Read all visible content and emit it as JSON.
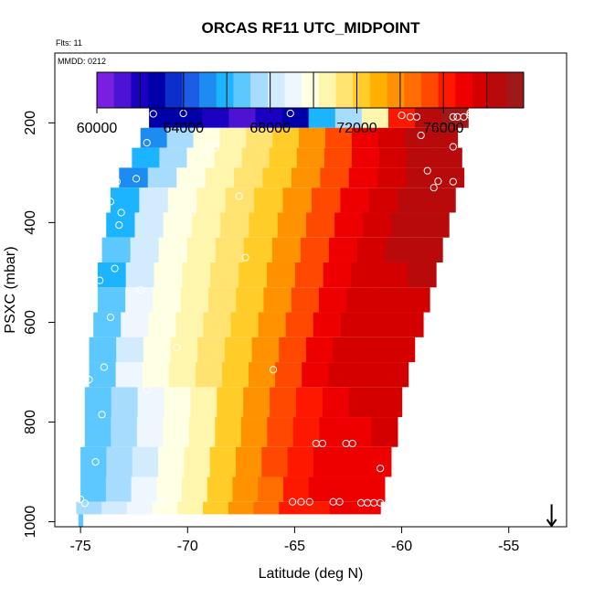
{
  "chart_data": {
    "type": "heatmap",
    "title": "ORCAS RF11 UTC_MIDPOINT",
    "annotations": {
      "flights": "Flts: 11",
      "date": "MMDD: 0212"
    },
    "xlabel": "Latitude (deg N)",
    "ylabel": "PSXC (mbar)",
    "xlim": [
      -76.2,
      -52.3
    ],
    "ylim": [
      1010,
      60
    ],
    "y_reversed": true,
    "x_ticks": [
      -75,
      -70,
      -65,
      -60,
      -55
    ],
    "x_tick_labels": [
      "-75",
      "-70",
      "-65",
      "-60",
      "-55"
    ],
    "y_ticks": [
      200,
      400,
      600,
      800,
      1000
    ],
    "y_tick_labels": [
      "200",
      "400",
      "600",
      "800",
      "1000"
    ],
    "colorbar": {
      "min": 60000,
      "max": 79700,
      "ticks": [
        60000,
        64000,
        68000,
        72000,
        76000
      ],
      "tick_labels": [
        "60000",
        "64000",
        "68000",
        "72000",
        "76000"
      ],
      "colors": [
        "#7A1FE0",
        "#4C14D2",
        "#1A00C0",
        "#0000A8",
        "#0C2ECC",
        "#1C5CE6",
        "#1C8CF2",
        "#1CB4FE",
        "#5CC8FE",
        "#A8DCFE",
        "#D2ECFE",
        "#EEF6FE",
        "#FFFFE4",
        "#FFF6AE",
        "#FFE270",
        "#FFCC28",
        "#FFB000",
        "#FF9200",
        "#FF6E00",
        "#FF4800",
        "#FF1800",
        "#EE0000",
        "#D40000",
        "#B80A0A",
        "#A01818"
      ],
      "block_boundaries": [
        62000,
        64000,
        66000,
        68000,
        70000,
        72000,
        74000,
        76000,
        78000
      ]
    },
    "series": [
      {
        "p_top": 158,
        "p_bot": 210,
        "x_left": -71.8,
        "x_right": -56.9,
        "values": [
          62600,
          62600,
          61800,
          61000,
          61800,
          63000,
          65600,
          67600,
          70400,
          76000,
          78200,
          79000
        ]
      },
      {
        "p_top": 210,
        "p_bot": 250,
        "x_left": -72.2,
        "x_right": -57.4,
        "values": [
          65400,
          67400,
          69600,
          70600,
          71400,
          72600,
          73800,
          75400,
          76800,
          77600,
          78200,
          78600
        ]
      },
      {
        "p_top": 250,
        "p_bot": 290,
        "x_left": -72.6,
        "x_right": -57.2,
        "values": [
          65600,
          67600,
          69600,
          70600,
          71400,
          72600,
          73800,
          75400,
          76800,
          77600,
          78200,
          78800
        ]
      },
      {
        "p_top": 290,
        "p_bot": 330,
        "x_left": -73.2,
        "x_right": -57.1,
        "values": [
          65400,
          67600,
          69600,
          70600,
          71400,
          72600,
          73800,
          75400,
          76800,
          77600,
          78200,
          78600
        ]
      },
      {
        "p_top": 330,
        "p_bot": 380,
        "x_left": -73.6,
        "x_right": -57.5,
        "values": [
          66000,
          68200,
          69600,
          70600,
          71400,
          72600,
          73800,
          75400,
          76800,
          77600,
          78200,
          78600
        ]
      },
      {
        "p_top": 380,
        "p_bot": 430,
        "x_left": -73.8,
        "x_right": -57.8,
        "values": [
          66200,
          68200,
          69600,
          70600,
          71400,
          72600,
          73800,
          75400,
          76800,
          77600,
          78200,
          78600
        ]
      },
      {
        "p_top": 430,
        "p_bot": 480,
        "x_left": -74.0,
        "x_right": -58.1,
        "values": [
          66400,
          68200,
          69600,
          70600,
          71400,
          72600,
          73800,
          75400,
          76800,
          77600,
          78200,
          78600
        ]
      },
      {
        "p_top": 480,
        "p_bot": 530,
        "x_left": -74.2,
        "x_right": -58.4,
        "values": [
          66200,
          68400,
          69600,
          70600,
          71400,
          72600,
          73800,
          75400,
          76800,
          77600,
          78000,
          78200
        ]
      },
      {
        "p_top": 530,
        "p_bot": 580,
        "x_left": -74.2,
        "x_right": -58.7,
        "values": [
          66600,
          68800,
          69800,
          70600,
          71400,
          72600,
          73800,
          75400,
          76800,
          77400,
          77800,
          78000
        ]
      },
      {
        "p_top": 580,
        "p_bot": 630,
        "x_left": -74.4,
        "x_right": -59.0,
        "values": [
          66800,
          69000,
          69800,
          70600,
          71400,
          72600,
          73800,
          75400,
          76800,
          77400,
          77800,
          78000
        ]
      },
      {
        "p_top": 630,
        "p_bot": 680,
        "x_left": -74.6,
        "x_right": -59.4,
        "values": [
          66400,
          68600,
          69800,
          70600,
          71400,
          72600,
          73800,
          75400,
          76800,
          77400,
          77600,
          77800
        ]
      },
      {
        "p_top": 680,
        "p_bot": 730,
        "x_left": -74.6,
        "x_right": -59.7,
        "values": [
          66800,
          68800,
          69800,
          70800,
          71600,
          72600,
          73800,
          75400,
          76800,
          77400,
          77600,
          77800
        ]
      },
      {
        "p_top": 730,
        "p_bot": 790,
        "x_left": -74.8,
        "x_right": -60.0,
        "values": [
          66800,
          67800,
          68800,
          69800,
          71000,
          72400,
          73800,
          75000,
          76400,
          77000,
          77400,
          77600
        ]
      },
      {
        "p_top": 790,
        "p_bot": 850,
        "x_left": -74.8,
        "x_right": -60.2,
        "values": [
          66600,
          67800,
          68800,
          69800,
          71000,
          72400,
          73800,
          75000,
          76400,
          77000,
          77200,
          77400
        ]
      },
      {
        "p_top": 850,
        "p_bot": 910,
        "x_left": -75.0,
        "x_right": -60.5,
        "values": [
          66600,
          67600,
          68600,
          69600,
          70800,
          72200,
          73600,
          75000,
          76200,
          76800,
          77000,
          77200
        ]
      },
      {
        "p_top": 910,
        "p_bot": 960,
        "x_left": -75.0,
        "x_right": -60.8,
        "values": [
          66800,
          67800,
          68800,
          69800,
          70800,
          72200,
          73400,
          74800,
          76000,
          76600,
          77000,
          77200
        ]
      },
      {
        "p_top": 960,
        "p_bot": 985,
        "x_left": -75.2,
        "x_right": -61.0,
        "values": [
          67200,
          68200,
          69200,
          70000,
          70800,
          72200,
          73400,
          74800,
          76000,
          76400,
          76600,
          76800
        ]
      },
      {
        "p_top": 985,
        "p_bot": 1010,
        "x_left": -75.1,
        "x_right": -74.9,
        "values": [
          67000
        ]
      }
    ],
    "points": [
      {
        "x": -71.6,
        "y": 182
      },
      {
        "x": -70.2,
        "y": 181
      },
      {
        "x": -65.2,
        "y": 181
      },
      {
        "x": -60.0,
        "y": 185
      },
      {
        "x": -59.6,
        "y": 188
      },
      {
        "x": -59.3,
        "y": 188
      },
      {
        "x": -57.6,
        "y": 188
      },
      {
        "x": -57.4,
        "y": 188
      },
      {
        "x": -57.1,
        "y": 188
      },
      {
        "x": -56.8,
        "y": 185
      },
      {
        "x": -56.8,
        "y": 180
      },
      {
        "x": -59.1,
        "y": 225
      },
      {
        "x": -57.6,
        "y": 248
      },
      {
        "x": -71.9,
        "y": 240
      },
      {
        "x": -69.0,
        "y": 250
      },
      {
        "x": -68.7,
        "y": 250
      },
      {
        "x": -58.8,
        "y": 296
      },
      {
        "x": -58.3,
        "y": 317
      },
      {
        "x": -58.5,
        "y": 330
      },
      {
        "x": -57.6,
        "y": 318
      },
      {
        "x": -72.4,
        "y": 312
      },
      {
        "x": -73.3,
        "y": 318
      },
      {
        "x": -67.6,
        "y": 347
      },
      {
        "x": -73.6,
        "y": 358
      },
      {
        "x": -73.1,
        "y": 380
      },
      {
        "x": -69.8,
        "y": 380
      },
      {
        "x": -73.2,
        "y": 405
      },
      {
        "x": -67.3,
        "y": 470
      },
      {
        "x": -73.4,
        "y": 492
      },
      {
        "x": -74.1,
        "y": 516
      },
      {
        "x": -72.2,
        "y": 535
      },
      {
        "x": -73.6,
        "y": 590
      },
      {
        "x": -70.5,
        "y": 651
      },
      {
        "x": -66.0,
        "y": 695
      },
      {
        "x": -73.9,
        "y": 690
      },
      {
        "x": -74.6,
        "y": 715
      },
      {
        "x": -71.9,
        "y": 735
      },
      {
        "x": -74.0,
        "y": 785
      },
      {
        "x": -64.0,
        "y": 843
      },
      {
        "x": -63.7,
        "y": 843
      },
      {
        "x": -62.6,
        "y": 843
      },
      {
        "x": -62.3,
        "y": 843
      },
      {
        "x": -74.3,
        "y": 880
      },
      {
        "x": -61.0,
        "y": 893
      },
      {
        "x": -75.0,
        "y": 955
      },
      {
        "x": -74.8,
        "y": 963
      },
      {
        "x": -71.3,
        "y": 960
      },
      {
        "x": -71.1,
        "y": 960
      },
      {
        "x": -65.1,
        "y": 960
      },
      {
        "x": -64.7,
        "y": 960
      },
      {
        "x": -64.3,
        "y": 960
      },
      {
        "x": -63.2,
        "y": 960
      },
      {
        "x": -62.9,
        "y": 960
      },
      {
        "x": -61.9,
        "y": 962
      },
      {
        "x": -61.6,
        "y": 962
      },
      {
        "x": -61.3,
        "y": 962
      },
      {
        "x": -61.0,
        "y": 962
      }
    ],
    "marker": {
      "type": "arrow-down",
      "x": -53.0,
      "y_from": 965,
      "y_to": 1010
    }
  }
}
